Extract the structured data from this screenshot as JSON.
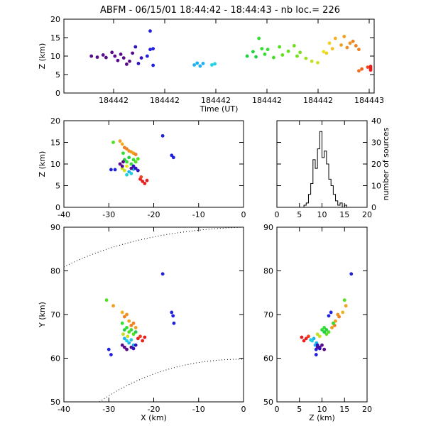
{
  "title": "ABFM - 06/15/01 18:44:42 - 18:44:43 - nb loc.=     226",
  "chart_data": [
    {
      "id": "time_height",
      "type": "scatter",
      "xlabel": "Time (UT)",
      "ylabel": "Z (km)",
      "xlim": [
        0,
        1
      ],
      "ylim": [
        0,
        20
      ],
      "xtick_labels": [
        "184442",
        "184442",
        "184442",
        "184442",
        "184442",
        "184443"
      ],
      "yticks": [
        0,
        5,
        10,
        15,
        20
      ],
      "points": [
        {
          "x": 0.05,
          "y": 10.0,
          "c": "#5a0a8c"
        },
        {
          "x": 0.07,
          "y": 9.7,
          "c": "#5a0a8c"
        },
        {
          "x": 0.09,
          "y": 10.3,
          "c": "#5a0a8c"
        },
        {
          "x": 0.1,
          "y": 9.6,
          "c": "#5a0a8c"
        },
        {
          "x": 0.12,
          "y": 11.0,
          "c": "#5a0a8c"
        },
        {
          "x": 0.13,
          "y": 10.0,
          "c": "#5a0a8c"
        },
        {
          "x": 0.14,
          "y": 8.8,
          "c": "#5a0a8c"
        },
        {
          "x": 0.15,
          "y": 10.5,
          "c": "#5a0a8c"
        },
        {
          "x": 0.16,
          "y": 9.5,
          "c": "#5a0a8c"
        },
        {
          "x": 0.17,
          "y": 7.8,
          "c": "#5a0a8c"
        },
        {
          "x": 0.18,
          "y": 8.6,
          "c": "#5a0a8c"
        },
        {
          "x": 0.19,
          "y": 10.8,
          "c": "#5a0a8c"
        },
        {
          "x": 0.2,
          "y": 12.5,
          "c": "#3010c0"
        },
        {
          "x": 0.21,
          "y": 8.0,
          "c": "#3010c0"
        },
        {
          "x": 0.22,
          "y": 9.5,
          "c": "#3010c0"
        },
        {
          "x": 0.24,
          "y": 10.0,
          "c": "#2020e0"
        },
        {
          "x": 0.25,
          "y": 11.8,
          "c": "#2020e0"
        },
        {
          "x": 0.26,
          "y": 12.0,
          "c": "#2020e0"
        },
        {
          "x": 0.25,
          "y": 16.8,
          "c": "#2020e0"
        },
        {
          "x": 0.26,
          "y": 7.5,
          "c": "#2020e0"
        },
        {
          "x": 0.4,
          "y": 7.6,
          "c": "#20b0f0"
        },
        {
          "x": 0.41,
          "y": 8.1,
          "c": "#20b0f0"
        },
        {
          "x": 0.42,
          "y": 7.3,
          "c": "#20b0f0"
        },
        {
          "x": 0.43,
          "y": 8.0,
          "c": "#20b0f0"
        },
        {
          "x": 0.46,
          "y": 7.6,
          "c": "#20d0e0"
        },
        {
          "x": 0.47,
          "y": 7.9,
          "c": "#20d0e0"
        },
        {
          "x": 0.58,
          "y": 10.0,
          "c": "#20d040"
        },
        {
          "x": 0.6,
          "y": 11.2,
          "c": "#20d040"
        },
        {
          "x": 0.61,
          "y": 9.8,
          "c": "#20d040"
        },
        {
          "x": 0.62,
          "y": 14.8,
          "c": "#30e030"
        },
        {
          "x": 0.63,
          "y": 12.0,
          "c": "#30e030"
        },
        {
          "x": 0.64,
          "y": 10.5,
          "c": "#30e030"
        },
        {
          "x": 0.65,
          "y": 11.8,
          "c": "#30e030"
        },
        {
          "x": 0.67,
          "y": 9.6,
          "c": "#40e020"
        },
        {
          "x": 0.69,
          "y": 12.5,
          "c": "#50e020"
        },
        {
          "x": 0.7,
          "y": 10.3,
          "c": "#60e020"
        },
        {
          "x": 0.72,
          "y": 11.3,
          "c": "#60e020"
        },
        {
          "x": 0.74,
          "y": 12.8,
          "c": "#70e020"
        },
        {
          "x": 0.75,
          "y": 10.0,
          "c": "#70e020"
        },
        {
          "x": 0.76,
          "y": 11.0,
          "c": "#80e020"
        },
        {
          "x": 0.78,
          "y": 9.4,
          "c": "#a0e020"
        },
        {
          "x": 0.8,
          "y": 8.6,
          "c": "#c0e020"
        },
        {
          "x": 0.82,
          "y": 8.2,
          "c": "#d0e020"
        },
        {
          "x": 0.84,
          "y": 11.2,
          "c": "#f0e020"
        },
        {
          "x": 0.85,
          "y": 10.8,
          "c": "#f0d020"
        },
        {
          "x": 0.86,
          "y": 13.5,
          "c": "#f0d020"
        },
        {
          "x": 0.87,
          "y": 12.0,
          "c": "#f0c020"
        },
        {
          "x": 0.88,
          "y": 14.8,
          "c": "#f0b020"
        },
        {
          "x": 0.9,
          "y": 13.0,
          "c": "#f0a020"
        },
        {
          "x": 0.91,
          "y": 15.3,
          "c": "#f0a020"
        },
        {
          "x": 0.92,
          "y": 12.3,
          "c": "#f09020"
        },
        {
          "x": 0.93,
          "y": 13.5,
          "c": "#f09020"
        },
        {
          "x": 0.94,
          "y": 14.0,
          "c": "#f08020"
        },
        {
          "x": 0.95,
          "y": 12.8,
          "c": "#f08020"
        },
        {
          "x": 0.96,
          "y": 11.8,
          "c": "#f08020"
        },
        {
          "x": 0.96,
          "y": 6.0,
          "c": "#f07020"
        },
        {
          "x": 0.97,
          "y": 6.5,
          "c": "#f06020"
        },
        {
          "x": 0.99,
          "y": 7.0,
          "c": "#f05020"
        },
        {
          "x": 1.0,
          "y": 6.2,
          "c": "#f04020"
        },
        {
          "x": 1.0,
          "y": 6.6,
          "c": "#e82020"
        },
        {
          "x": 1.0,
          "y": 6.9,
          "c": "#e82020"
        },
        {
          "x": 1.0,
          "y": 6.3,
          "c": "#e82020"
        },
        {
          "x": 1.0,
          "y": 7.2,
          "c": "#e02020"
        }
      ]
    },
    {
      "id": "x_z",
      "type": "scatter",
      "xlabel": "",
      "ylabel": "Z (km)",
      "xlim": [
        -40,
        0
      ],
      "ylim": [
        0,
        20
      ],
      "xticks": [
        -40,
        -30,
        -20,
        -10,
        0
      ],
      "yticks": [
        0,
        5,
        10,
        15,
        20
      ],
      "points": [
        {
          "x": -29.5,
          "y": 8.7,
          "c": "#2020e0"
        },
        {
          "x": -28.6,
          "y": 8.7,
          "c": "#2020e0"
        },
        {
          "x": -18.0,
          "y": 16.5,
          "c": "#2020e0"
        },
        {
          "x": -16.0,
          "y": 12.0,
          "c": "#2020e0"
        },
        {
          "x": -15.6,
          "y": 11.5,
          "c": "#2020e0"
        },
        {
          "x": -29.0,
          "y": 15.0,
          "c": "#50e020"
        },
        {
          "x": -27.5,
          "y": 15.3,
          "c": "#f0a020"
        },
        {
          "x": -27.0,
          "y": 14.6,
          "c": "#f0b020"
        },
        {
          "x": -26.8,
          "y": 12.5,
          "c": "#30e030"
        },
        {
          "x": -26.5,
          "y": 13.8,
          "c": "#f08020"
        },
        {
          "x": -26.0,
          "y": 13.5,
          "c": "#f08020"
        },
        {
          "x": -25.5,
          "y": 13.0,
          "c": "#f09020"
        },
        {
          "x": -25.0,
          "y": 12.8,
          "c": "#f0a020"
        },
        {
          "x": -24.5,
          "y": 12.5,
          "c": "#f0a020"
        },
        {
          "x": -24.0,
          "y": 12.2,
          "c": "#f08020"
        },
        {
          "x": -26.5,
          "y": 11.0,
          "c": "#20d040"
        },
        {
          "x": -26.0,
          "y": 10.5,
          "c": "#30e030"
        },
        {
          "x": -25.5,
          "y": 11.5,
          "c": "#20d040"
        },
        {
          "x": -25.0,
          "y": 10.0,
          "c": "#30e030"
        },
        {
          "x": -24.5,
          "y": 11.0,
          "c": "#30e030"
        },
        {
          "x": -24.0,
          "y": 10.5,
          "c": "#50e020"
        },
        {
          "x": -23.5,
          "y": 11.2,
          "c": "#50e020"
        },
        {
          "x": -27.0,
          "y": 9.0,
          "c": "#c0e020"
        },
        {
          "x": -26.5,
          "y": 8.5,
          "c": "#d0e020"
        },
        {
          "x": -26.0,
          "y": 9.5,
          "c": "#f0e020"
        },
        {
          "x": -25.5,
          "y": 8.2,
          "c": "#20b0f0"
        },
        {
          "x": -25.0,
          "y": 7.8,
          "c": "#20d0e0"
        },
        {
          "x": -24.5,
          "y": 8.8,
          "c": "#20b0f0"
        },
        {
          "x": -26.0,
          "y": 7.5,
          "c": "#20d0e0"
        },
        {
          "x": -27.5,
          "y": 10.0,
          "c": "#5a0a8c"
        },
        {
          "x": -27.0,
          "y": 9.5,
          "c": "#5a0a8c"
        },
        {
          "x": -26.8,
          "y": 10.5,
          "c": "#5a0a8c"
        },
        {
          "x": -25.0,
          "y": 9.0,
          "c": "#5a0a8c"
        },
        {
          "x": -24.5,
          "y": 9.5,
          "c": "#3010c0"
        },
        {
          "x": -24.0,
          "y": 9.0,
          "c": "#3010c0"
        },
        {
          "x": -23.5,
          "y": 8.5,
          "c": "#3010c0"
        },
        {
          "x": -23.0,
          "y": 6.5,
          "c": "#e82020"
        },
        {
          "x": -22.5,
          "y": 6.0,
          "c": "#e82020"
        },
        {
          "x": -22.0,
          "y": 5.5,
          "c": "#e82020"
        },
        {
          "x": -22.8,
          "y": 7.0,
          "c": "#f04020"
        },
        {
          "x": -21.5,
          "y": 6.2,
          "c": "#e02020"
        }
      ]
    },
    {
      "id": "z_histogram",
      "type": "bar",
      "xlabel": "",
      "ylabel": "number of sources",
      "xlim": [
        0,
        20
      ],
      "ylim": [
        0,
        40
      ],
      "xticks": [
        0,
        5,
        10,
        15,
        20
      ],
      "yticks": [
        0,
        10,
        20,
        30,
        40
      ],
      "bins": [
        5.5,
        6,
        6.5,
        7,
        7.5,
        8,
        8.5,
        9,
        9.5,
        10,
        10.5,
        11,
        11.5,
        12,
        12.5,
        13,
        13.5,
        14,
        14.5,
        15,
        15.5,
        16
      ],
      "counts": [
        0,
        1,
        2,
        6,
        11,
        22,
        18,
        27,
        35,
        23,
        26,
        20,
        13,
        10,
        6,
        3,
        1,
        2,
        0,
        1,
        0,
        0
      ]
    },
    {
      "id": "x_y",
      "type": "scatter",
      "xlabel": "X (km)",
      "ylabel": "Y (km)",
      "xlim": [
        -40,
        0
      ],
      "ylim": [
        50,
        90
      ],
      "xticks": [
        -40,
        -30,
        -20,
        -10,
        0
      ],
      "yticks": [
        50,
        60,
        70,
        80,
        90
      ],
      "points": [
        {
          "x": -18.0,
          "y": 79.3,
          "c": "#2020e0"
        },
        {
          "x": -16.0,
          "y": 70.5,
          "c": "#2020e0"
        },
        {
          "x": -15.7,
          "y": 69.7,
          "c": "#2020e0"
        },
        {
          "x": -15.5,
          "y": 68.0,
          "c": "#2020e0"
        },
        {
          "x": -30.0,
          "y": 62.0,
          "c": "#2020e0"
        },
        {
          "x": -29.5,
          "y": 60.8,
          "c": "#2020e0"
        },
        {
          "x": -30.5,
          "y": 73.3,
          "c": "#50e020"
        },
        {
          "x": -29.0,
          "y": 72.0,
          "c": "#f0a020"
        },
        {
          "x": -27.0,
          "y": 70.5,
          "c": "#f0b020"
        },
        {
          "x": -26.5,
          "y": 69.5,
          "c": "#f08020"
        },
        {
          "x": -26.0,
          "y": 70.0,
          "c": "#f09020"
        },
        {
          "x": -25.5,
          "y": 68.5,
          "c": "#f0a020"
        },
        {
          "x": -25.0,
          "y": 67.5,
          "c": "#f08020"
        },
        {
          "x": -24.5,
          "y": 68.0,
          "c": "#f08020"
        },
        {
          "x": -24.0,
          "y": 67.0,
          "c": "#f0a020"
        },
        {
          "x": -27.0,
          "y": 68.0,
          "c": "#30e030"
        },
        {
          "x": -26.5,
          "y": 66.5,
          "c": "#20d040"
        },
        {
          "x": -26.0,
          "y": 67.0,
          "c": "#30e030"
        },
        {
          "x": -25.5,
          "y": 66.0,
          "c": "#50e020"
        },
        {
          "x": -25.0,
          "y": 66.5,
          "c": "#30e030"
        },
        {
          "x": -24.5,
          "y": 65.5,
          "c": "#50e020"
        },
        {
          "x": -24.0,
          "y": 66.0,
          "c": "#20d040"
        },
        {
          "x": -26.5,
          "y": 64.5,
          "c": "#20b0f0"
        },
        {
          "x": -26.0,
          "y": 64.0,
          "c": "#20d0e0"
        },
        {
          "x": -25.5,
          "y": 63.5,
          "c": "#20b0f0"
        },
        {
          "x": -25.0,
          "y": 64.2,
          "c": "#20d0e0"
        },
        {
          "x": -24.5,
          "y": 63.0,
          "c": "#20b0f0"
        },
        {
          "x": -25.8,
          "y": 65.0,
          "c": "#d0e020"
        },
        {
          "x": -26.8,
          "y": 65.5,
          "c": "#c0e020"
        },
        {
          "x": -27.0,
          "y": 63.0,
          "c": "#5a0a8c"
        },
        {
          "x": -26.5,
          "y": 62.5,
          "c": "#5a0a8c"
        },
        {
          "x": -26.0,
          "y": 62.0,
          "c": "#5a0a8c"
        },
        {
          "x": -25.0,
          "y": 62.5,
          "c": "#5a0a8c"
        },
        {
          "x": -24.5,
          "y": 62.2,
          "c": "#3010c0"
        },
        {
          "x": -24.0,
          "y": 63.0,
          "c": "#3010c0"
        },
        {
          "x": -23.5,
          "y": 64.5,
          "c": "#e82020"
        },
        {
          "x": -22.5,
          "y": 64.0,
          "c": "#e82020"
        },
        {
          "x": -23.0,
          "y": 65.0,
          "c": "#f04020"
        },
        {
          "x": -22.0,
          "y": 64.8,
          "c": "#e02020"
        }
      ]
    },
    {
      "id": "z_y",
      "type": "scatter",
      "xlabel": "Z (km)",
      "ylabel": "",
      "xlim": [
        0,
        20
      ],
      "ylim": [
        50,
        90
      ],
      "xticks": [
        0,
        5,
        10,
        15,
        20
      ],
      "yticks": [
        50,
        60,
        70,
        80,
        90
      ],
      "points": [
        {
          "x": 16.5,
          "y": 79.3,
          "c": "#2020e0"
        },
        {
          "x": 12.0,
          "y": 70.5,
          "c": "#2020e0"
        },
        {
          "x": 11.5,
          "y": 69.7,
          "c": "#2020e0"
        },
        {
          "x": 8.7,
          "y": 62.0,
          "c": "#2020e0"
        },
        {
          "x": 8.7,
          "y": 60.8,
          "c": "#2020e0"
        },
        {
          "x": 15.0,
          "y": 73.3,
          "c": "#50e020"
        },
        {
          "x": 15.3,
          "y": 72.0,
          "c": "#f0a020"
        },
        {
          "x": 14.6,
          "y": 70.5,
          "c": "#f0b020"
        },
        {
          "x": 13.8,
          "y": 69.5,
          "c": "#f08020"
        },
        {
          "x": 13.5,
          "y": 70.0,
          "c": "#f09020"
        },
        {
          "x": 13.0,
          "y": 68.5,
          "c": "#f0a020"
        },
        {
          "x": 12.8,
          "y": 67.5,
          "c": "#f08020"
        },
        {
          "x": 12.5,
          "y": 68.0,
          "c": "#f08020"
        },
        {
          "x": 12.2,
          "y": 67.0,
          "c": "#f0a020"
        },
        {
          "x": 12.5,
          "y": 68.0,
          "c": "#30e030"
        },
        {
          "x": 11.0,
          "y": 66.5,
          "c": "#20d040"
        },
        {
          "x": 10.5,
          "y": 67.0,
          "c": "#30e030"
        },
        {
          "x": 11.5,
          "y": 66.0,
          "c": "#50e020"
        },
        {
          "x": 10.0,
          "y": 66.5,
          "c": "#30e030"
        },
        {
          "x": 11.0,
          "y": 65.5,
          "c": "#50e020"
        },
        {
          "x": 10.5,
          "y": 66.0,
          "c": "#20d040"
        },
        {
          "x": 8.2,
          "y": 64.5,
          "c": "#20b0f0"
        },
        {
          "x": 7.8,
          "y": 64.0,
          "c": "#20d0e0"
        },
        {
          "x": 8.8,
          "y": 63.5,
          "c": "#20b0f0"
        },
        {
          "x": 7.5,
          "y": 64.2,
          "c": "#20d0e0"
        },
        {
          "x": 8.5,
          "y": 63.0,
          "c": "#20b0f0"
        },
        {
          "x": 9.5,
          "y": 65.0,
          "c": "#d0e020"
        },
        {
          "x": 9.0,
          "y": 65.5,
          "c": "#c0e020"
        },
        {
          "x": 10.0,
          "y": 63.0,
          "c": "#5a0a8c"
        },
        {
          "x": 9.5,
          "y": 62.5,
          "c": "#5a0a8c"
        },
        {
          "x": 10.5,
          "y": 62.0,
          "c": "#5a0a8c"
        },
        {
          "x": 9.0,
          "y": 62.5,
          "c": "#5a0a8c"
        },
        {
          "x": 9.5,
          "y": 62.2,
          "c": "#3010c0"
        },
        {
          "x": 9.0,
          "y": 63.0,
          "c": "#3010c0"
        },
        {
          "x": 6.5,
          "y": 64.5,
          "c": "#e82020"
        },
        {
          "x": 6.0,
          "y": 64.0,
          "c": "#e82020"
        },
        {
          "x": 7.0,
          "y": 65.0,
          "c": "#f04020"
        },
        {
          "x": 5.5,
          "y": 64.8,
          "c": "#e02020"
        }
      ]
    }
  ]
}
